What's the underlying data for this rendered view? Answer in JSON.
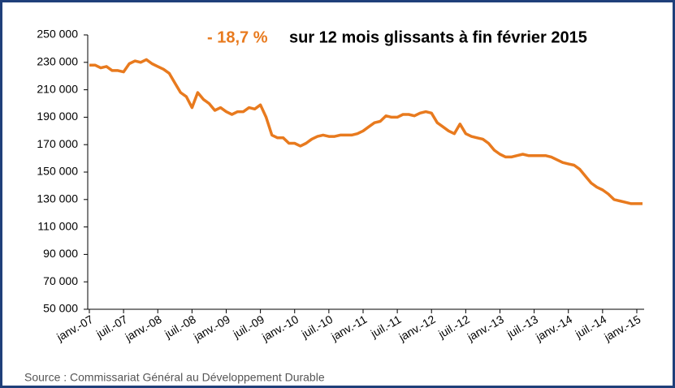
{
  "chart_data": {
    "type": "line",
    "title_highlight": "- 18,7 %",
    "title": "sur 12 mois glissants à fin février 2015",
    "source": "Source : Commissariat Général au Développement Durable",
    "categories": [
      "janv.-07",
      null,
      null,
      null,
      null,
      null,
      "juil.-07",
      null,
      null,
      null,
      null,
      null,
      "janv.-08",
      null,
      null,
      null,
      null,
      null,
      "juil.-08",
      null,
      null,
      null,
      null,
      null,
      "janv.-09",
      null,
      null,
      null,
      null,
      null,
      "juil.-09",
      null,
      null,
      null,
      null,
      null,
      "janv.-10",
      null,
      null,
      null,
      null,
      null,
      "juil.-10",
      null,
      null,
      null,
      null,
      null,
      "janv.-11",
      null,
      null,
      null,
      null,
      null,
      "juil.-11",
      null,
      null,
      null,
      null,
      null,
      "janv.-12",
      null,
      null,
      null,
      null,
      null,
      "juil.-12",
      null,
      null,
      null,
      null,
      null,
      "janv.-13",
      null,
      null,
      null,
      null,
      null,
      "juil.-13",
      null,
      null,
      null,
      null,
      null,
      "janv.-14",
      null,
      null,
      null,
      null,
      null,
      "juil.-14",
      null,
      null,
      null,
      null,
      null,
      "janv.-15",
      null
    ],
    "series": [
      {
        "color": "#e87a1e",
        "values": [
          228000,
          228000,
          226000,
          227000,
          224000,
          224000,
          223000,
          229000,
          231000,
          230000,
          232000,
          229000,
          227000,
          225000,
          222000,
          215000,
          208000,
          205000,
          197000,
          208000,
          203000,
          200000,
          195000,
          197000,
          194000,
          192000,
          194000,
          194000,
          197000,
          196000,
          199000,
          190000,
          177000,
          175000,
          175000,
          171000,
          171000,
          169000,
          171000,
          174000,
          176000,
          177000,
          176000,
          176000,
          177000,
          177000,
          177000,
          178000,
          180000,
          183000,
          186000,
          187000,
          191000,
          190000,
          190000,
          192000,
          192000,
          191000,
          193000,
          194000,
          193000,
          186000,
          183000,
          180000,
          178000,
          185000,
          178000,
          176000,
          175000,
          174000,
          171000,
          166000,
          163000,
          161000,
          161000,
          162000,
          163000,
          162000,
          162000,
          162000,
          162000,
          161000,
          159000,
          157000,
          156000,
          155000,
          152000,
          147000,
          142000,
          139000,
          137000,
          134000,
          130000,
          129000,
          128000,
          127000,
          127000,
          127000
        ]
      }
    ],
    "ylim": [
      50000,
      250000
    ],
    "yticks": [
      {
        "value": 50000,
        "label": "50 000"
      },
      {
        "value": 70000,
        "label": "70 000"
      },
      {
        "value": 90000,
        "label": "90 000"
      },
      {
        "value": 110000,
        "label": "110 000"
      },
      {
        "value": 130000,
        "label": "130 000"
      },
      {
        "value": 150000,
        "label": "150 000"
      },
      {
        "value": 170000,
        "label": "170 000"
      },
      {
        "value": 190000,
        "label": "190 000"
      },
      {
        "value": 210000,
        "label": "210 000"
      },
      {
        "value": 230000,
        "label": "230 000"
      },
      {
        "value": 250000,
        "label": "250 000"
      }
    ]
  }
}
